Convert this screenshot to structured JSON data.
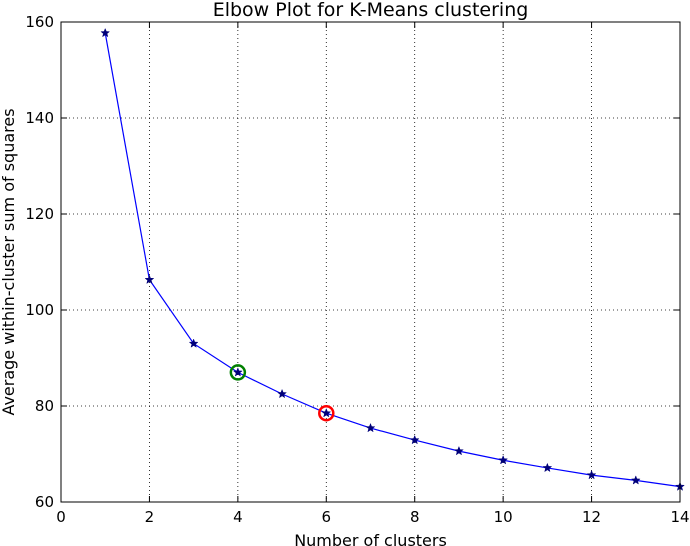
{
  "chart_data": {
    "type": "line",
    "title": "Elbow Plot for K-Means clustering",
    "xlabel": "Number of clusters",
    "ylabel": "Average within-cluster sum of squares",
    "xlim": [
      0,
      14
    ],
    "ylim": [
      60,
      160
    ],
    "xticks": [
      0,
      2,
      4,
      6,
      8,
      10,
      12,
      14
    ],
    "yticks": [
      60,
      80,
      100,
      120,
      140,
      160
    ],
    "grid": true,
    "series": [
      {
        "color": "#0000ff",
        "marker": "star",
        "x": [
          1,
          2,
          3,
          4,
          5,
          6,
          7,
          8,
          9,
          10,
          11,
          12,
          13,
          14
        ],
        "y": [
          157.7,
          106.3,
          93.0,
          87.0,
          82.5,
          78.5,
          75.4,
          72.9,
          70.6,
          68.7,
          67.1,
          65.6,
          64.5,
          63.2
        ]
      }
    ],
    "highlights": [
      {
        "x": 4,
        "y": 87.0,
        "color": "#008000",
        "shape": "circle"
      },
      {
        "x": 6,
        "y": 78.5,
        "color": "#ff0000",
        "shape": "circle"
      }
    ]
  }
}
